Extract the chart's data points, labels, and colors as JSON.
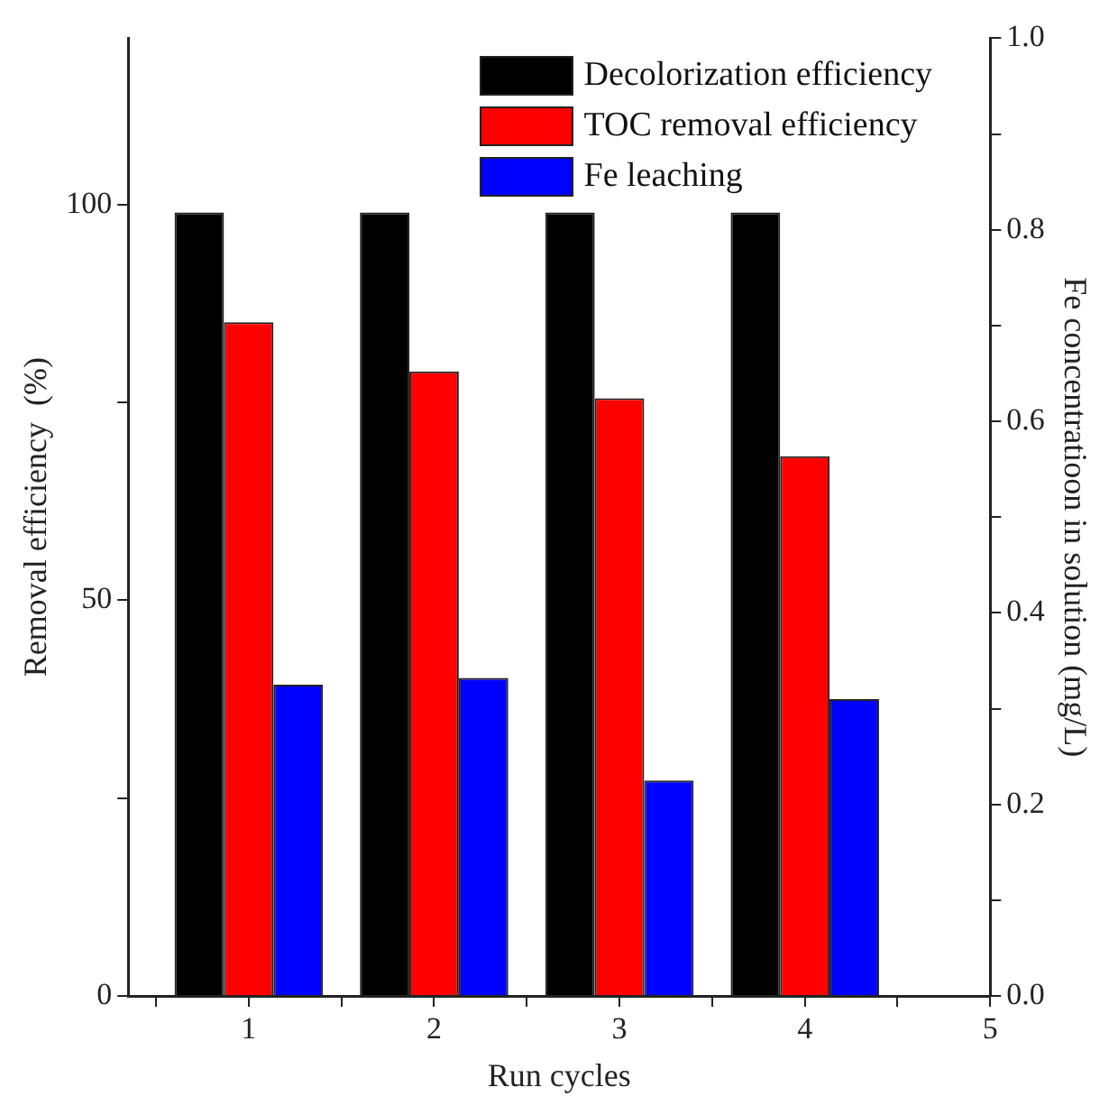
{
  "chart_data": {
    "type": "bar",
    "xlabel": "Run cycles",
    "ylabel": "Removal efficiency  (%)",
    "y2label": "Fe concentratioon in solution (mg/L)",
    "x": [
      1,
      2,
      3,
      4
    ],
    "series": [
      {
        "name": "Decolorization efficiency",
        "color": "#000000",
        "values": [
          99,
          99,
          99,
          99
        ]
      },
      {
        "name": "TOC removal efficiency",
        "color": "#ff0000",
        "values": [
          85.1,
          78.9,
          75.5,
          68.2
        ]
      },
      {
        "name": "Fe leaching",
        "color": "#0000ff",
        "values": [
          0.325,
          0.332,
          0.225,
          0.31
        ],
        "axis": "y2"
      }
    ],
    "xlim": [
      0.35,
      5
    ],
    "xticks": [
      {
        "value": 0.5,
        "label": null
      },
      1,
      {
        "value": 1.5,
        "label": null
      },
      2,
      {
        "value": 2.5,
        "label": null
      },
      3,
      {
        "value": 3.5,
        "label": null
      },
      4,
      {
        "value": 4.5,
        "label": null
      },
      5
    ],
    "ylim": [
      0,
      121
    ],
    "yticks": [
      0,
      {
        "value": 25,
        "label": null
      },
      50,
      {
        "value": 75,
        "label": null
      },
      100
    ],
    "y2lim": [
      0,
      1.0
    ],
    "y2ticks": [
      {
        "value": 0,
        "label": "0.0"
      },
      {
        "value": 0.1,
        "label": null
      },
      0.2,
      {
        "value": 0.3,
        "label": null
      },
      0.4,
      {
        "value": 0.5,
        "label": null
      },
      0.6,
      {
        "value": 0.7,
        "label": null
      },
      0.8,
      {
        "value": 0.9,
        "label": null
      },
      {
        "value": 1,
        "label": "1.0"
      }
    ],
    "legend": "top right",
    "grid": false
  }
}
